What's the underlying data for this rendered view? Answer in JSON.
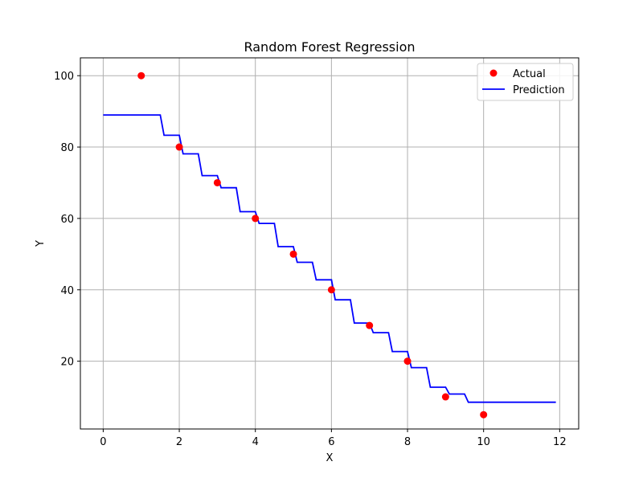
{
  "chart_data": {
    "type": "line",
    "title": "Random Forest Regression",
    "xlabel": "X",
    "ylabel": "Y",
    "xlim": [
      -0.6,
      12.5
    ],
    "ylim": [
      1,
      105
    ],
    "xticks": [
      0,
      2,
      4,
      6,
      8,
      10,
      12
    ],
    "yticks": [
      20,
      40,
      60,
      80,
      100
    ],
    "grid": true,
    "legend_position": "top-right",
    "series": [
      {
        "name": "Actual",
        "kind": "scatter",
        "color": "#ff0000",
        "x": [
          1,
          2,
          3,
          4,
          5,
          6,
          7,
          8,
          9,
          10
        ],
        "y": [
          100,
          80,
          70,
          60,
          50,
          40,
          30,
          20,
          10,
          5
        ]
      },
      {
        "name": "Prediction",
        "kind": "step",
        "color": "#0000ff",
        "x": [
          0.0,
          1.5,
          1.6,
          2.0,
          2.1,
          2.5,
          2.6,
          3.0,
          3.1,
          3.5,
          3.6,
          4.0,
          4.1,
          4.5,
          4.6,
          5.0,
          5.1,
          5.5,
          5.6,
          6.0,
          6.1,
          6.5,
          6.6,
          7.0,
          7.1,
          7.5,
          7.6,
          8.0,
          8.1,
          8.5,
          8.6,
          9.0,
          9.1,
          9.5,
          9.6,
          11.9
        ],
        "y": [
          89.0,
          89.0,
          83.3,
          83.3,
          78.1,
          78.1,
          72.0,
          72.0,
          68.6,
          68.6,
          61.9,
          61.9,
          58.6,
          58.6,
          52.1,
          52.1,
          47.7,
          47.7,
          42.8,
          42.8,
          37.2,
          37.2,
          30.7,
          30.7,
          28.0,
          28.0,
          22.7,
          22.7,
          18.2,
          18.2,
          12.7,
          12.7,
          10.8,
          10.8,
          8.5,
          8.5
        ]
      }
    ]
  }
}
